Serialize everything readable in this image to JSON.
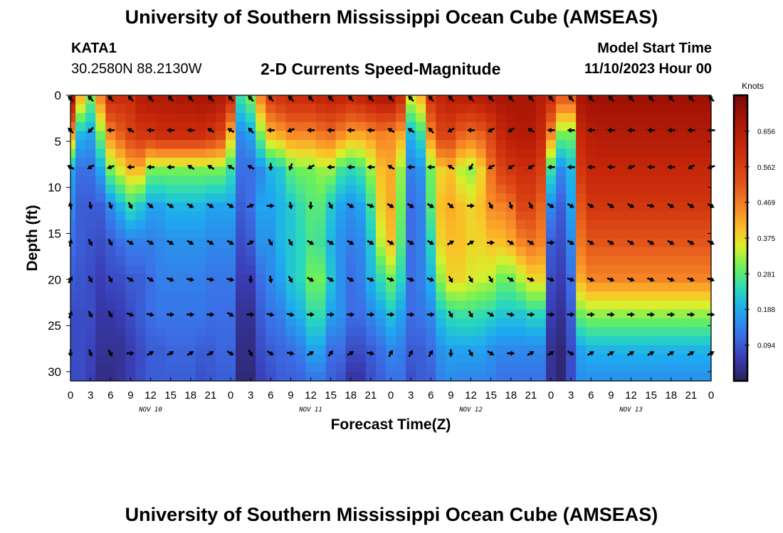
{
  "page": {
    "title_top": "University of Southern Mississippi Ocean Cube (AMSEAS)",
    "title_bottom": "University of Southern Mississippi Ocean Cube (AMSEAS)",
    "station": "KATA1",
    "coords": "30.2580N  88.2130W",
    "subtitle": "2-D Currents Speed-Magnitude",
    "model_start_label": "Model Start Time",
    "model_start_value": "11/10/2023 Hour 00"
  },
  "chart_data": {
    "type": "heatmap",
    "xlabel": "Forecast Time(Z)",
    "ylabel": "Depth (ft)",
    "x_range_hours": [
      0,
      96
    ],
    "y_range_ft": [
      0,
      31
    ],
    "x_ticks": [
      {
        "hour": 0,
        "label": "0"
      },
      {
        "hour": 3,
        "label": "3"
      },
      {
        "hour": 6,
        "label": "6"
      },
      {
        "hour": 9,
        "label": "9"
      },
      {
        "hour": 12,
        "label": "12"
      },
      {
        "hour": 15,
        "label": "15"
      },
      {
        "hour": 18,
        "label": "18"
      },
      {
        "hour": 21,
        "label": "21"
      },
      {
        "hour": 24,
        "label": "0"
      },
      {
        "hour": 27,
        "label": "3"
      },
      {
        "hour": 30,
        "label": "6"
      },
      {
        "hour": 33,
        "label": "9"
      },
      {
        "hour": 36,
        "label": "12"
      },
      {
        "hour": 39,
        "label": "15"
      },
      {
        "hour": 42,
        "label": "18"
      },
      {
        "hour": 45,
        "label": "21"
      },
      {
        "hour": 48,
        "label": "0"
      },
      {
        "hour": 51,
        "label": "3"
      },
      {
        "hour": 54,
        "label": "6"
      },
      {
        "hour": 57,
        "label": "9"
      },
      {
        "hour": 60,
        "label": "12"
      },
      {
        "hour": 63,
        "label": "15"
      },
      {
        "hour": 66,
        "label": "18"
      },
      {
        "hour": 69,
        "label": "21"
      },
      {
        "hour": 72,
        "label": "0"
      },
      {
        "hour": 75,
        "label": "3"
      },
      {
        "hour": 78,
        "label": "6"
      },
      {
        "hour": 81,
        "label": "9"
      },
      {
        "hour": 84,
        "label": "12"
      },
      {
        "hour": 87,
        "label": "15"
      },
      {
        "hour": 90,
        "label": "18"
      },
      {
        "hour": 93,
        "label": "21"
      },
      {
        "hour": 96,
        "label": "0"
      }
    ],
    "day_labels": [
      {
        "hour": 12,
        "label": "NOV 10"
      },
      {
        "hour": 36,
        "label": "NOV 11"
      },
      {
        "hour": 60,
        "label": "NOV 12"
      },
      {
        "hour": 84,
        "label": "NOV 13"
      }
    ],
    "y_ticks": [
      0,
      5,
      10,
      15,
      20,
      25,
      30
    ],
    "arrow_depths_ft": [
      0.2,
      3.8,
      7.8,
      12.0,
      16.0,
      20.0,
      23.8,
      28.0
    ],
    "colorbar": {
      "title": "Knots",
      "min": 0.0,
      "max": 0.75,
      "tick_values": [
        0.094,
        0.188,
        0.281,
        0.375,
        0.469,
        0.562,
        0.656
      ],
      "tick_labels": [
        "0.094",
        "0.188",
        "0.281",
        "0.375",
        "0.469",
        "0.562",
        "0.656"
      ]
    },
    "grid_hours": [
      0,
      1.5,
      3,
      4.5,
      6,
      7.5,
      9,
      10.5,
      12,
      13.5,
      15,
      16.5,
      18,
      19.5,
      21,
      22.5,
      24,
      25.5,
      27,
      28.5,
      30,
      31.5,
      33,
      34.5,
      36,
      37.5,
      39,
      40.5,
      42,
      43.5,
      45,
      46.5,
      48,
      49.5,
      51,
      52.5,
      54,
      55.5,
      57,
      58.5,
      60,
      61.5,
      63,
      64.5,
      66,
      67.5,
      69,
      70.5,
      72,
      73.5,
      75,
      76.5,
      78,
      79.5,
      81,
      82.5,
      84,
      85.5,
      87,
      88.5,
      90,
      91.5,
      93,
      94.5,
      96
    ],
    "depth_profiles_knots": [
      [
        0.68,
        0.42,
        0.18,
        0.15,
        0.12,
        0.1,
        0.08,
        0.08,
        0.08
      ],
      [
        0.4,
        0.2,
        0.12,
        0.1,
        0.1,
        0.09,
        0.08,
        0.08,
        0.08
      ],
      [
        0.3,
        0.18,
        0.12,
        0.1,
        0.09,
        0.08,
        0.08,
        0.07,
        0.06
      ],
      [
        0.45,
        0.3,
        0.18,
        0.1,
        0.08,
        0.06,
        0.05,
        0.04,
        0.03
      ],
      [
        0.6,
        0.45,
        0.3,
        0.15,
        0.1,
        0.08,
        0.05,
        0.04,
        0.03
      ],
      [
        0.6,
        0.5,
        0.35,
        0.2,
        0.12,
        0.08,
        0.06,
        0.04,
        0.04
      ],
      [
        0.6,
        0.55,
        0.4,
        0.25,
        0.14,
        0.1,
        0.08,
        0.06,
        0.06
      ],
      [
        0.65,
        0.58,
        0.4,
        0.22,
        0.14,
        0.1,
        0.1,
        0.08,
        0.08
      ],
      [
        0.66,
        0.58,
        0.3,
        0.18,
        0.14,
        0.12,
        0.12,
        0.1,
        0.1
      ],
      [
        0.66,
        0.6,
        0.3,
        0.18,
        0.15,
        0.14,
        0.13,
        0.1,
        0.1
      ],
      [
        0.66,
        0.6,
        0.3,
        0.2,
        0.16,
        0.14,
        0.13,
        0.11,
        0.1
      ],
      [
        0.67,
        0.6,
        0.3,
        0.2,
        0.16,
        0.14,
        0.13,
        0.11,
        0.1
      ],
      [
        0.67,
        0.6,
        0.3,
        0.2,
        0.16,
        0.14,
        0.13,
        0.11,
        0.1
      ],
      [
        0.68,
        0.6,
        0.3,
        0.2,
        0.16,
        0.14,
        0.13,
        0.1,
        0.08
      ],
      [
        0.68,
        0.58,
        0.3,
        0.18,
        0.15,
        0.13,
        0.12,
        0.1,
        0.09
      ],
      [
        0.66,
        0.55,
        0.3,
        0.18,
        0.15,
        0.13,
        0.12,
        0.11,
        0.1
      ],
      [
        0.6,
        0.4,
        0.25,
        0.18,
        0.15,
        0.13,
        0.12,
        0.11,
        0.1
      ],
      [
        0.25,
        0.15,
        0.12,
        0.1,
        0.08,
        0.06,
        0.04,
        0.03,
        0.02
      ],
      [
        0.3,
        0.18,
        0.12,
        0.12,
        0.1,
        0.06,
        0.04,
        0.03,
        0.02
      ],
      [
        0.45,
        0.3,
        0.15,
        0.18,
        0.16,
        0.12,
        0.1,
        0.08,
        0.06
      ],
      [
        0.55,
        0.4,
        0.2,
        0.18,
        0.16,
        0.15,
        0.13,
        0.1,
        0.08
      ],
      [
        0.58,
        0.42,
        0.22,
        0.2,
        0.2,
        0.18,
        0.14,
        0.11,
        0.1
      ],
      [
        0.6,
        0.45,
        0.28,
        0.22,
        0.22,
        0.22,
        0.18,
        0.12,
        0.1
      ],
      [
        0.6,
        0.45,
        0.3,
        0.25,
        0.24,
        0.24,
        0.2,
        0.14,
        0.1
      ],
      [
        0.6,
        0.45,
        0.3,
        0.28,
        0.27,
        0.3,
        0.25,
        0.18,
        0.12
      ],
      [
        0.62,
        0.47,
        0.32,
        0.28,
        0.26,
        0.3,
        0.25,
        0.18,
        0.12
      ],
      [
        0.63,
        0.48,
        0.32,
        0.22,
        0.2,
        0.22,
        0.18,
        0.12,
        0.1
      ],
      [
        0.62,
        0.45,
        0.26,
        0.18,
        0.16,
        0.16,
        0.16,
        0.12,
        0.08
      ],
      [
        0.6,
        0.42,
        0.24,
        0.16,
        0.14,
        0.12,
        0.12,
        0.08,
        0.04
      ],
      [
        0.62,
        0.42,
        0.26,
        0.18,
        0.15,
        0.14,
        0.12,
        0.08,
        0.04
      ],
      [
        0.64,
        0.44,
        0.32,
        0.26,
        0.22,
        0.2,
        0.15,
        0.1,
        0.08
      ],
      [
        0.66,
        0.46,
        0.4,
        0.38,
        0.34,
        0.25,
        0.18,
        0.12,
        0.1
      ],
      [
        0.66,
        0.45,
        0.42,
        0.42,
        0.4,
        0.3,
        0.22,
        0.15,
        0.12
      ],
      [
        0.6,
        0.42,
        0.32,
        0.3,
        0.28,
        0.24,
        0.18,
        0.14,
        0.12
      ],
      [
        0.35,
        0.2,
        0.14,
        0.12,
        0.12,
        0.12,
        0.12,
        0.1,
        0.08
      ],
      [
        0.4,
        0.25,
        0.16,
        0.14,
        0.14,
        0.14,
        0.13,
        0.1,
        0.1
      ],
      [
        0.58,
        0.45,
        0.3,
        0.28,
        0.24,
        0.2,
        0.15,
        0.12,
        0.1
      ],
      [
        0.62,
        0.55,
        0.38,
        0.4,
        0.38,
        0.32,
        0.22,
        0.16,
        0.14
      ],
      [
        0.64,
        0.55,
        0.4,
        0.42,
        0.4,
        0.38,
        0.25,
        0.18,
        0.15
      ],
      [
        0.64,
        0.5,
        0.34,
        0.4,
        0.4,
        0.38,
        0.26,
        0.18,
        0.14
      ],
      [
        0.64,
        0.48,
        0.32,
        0.38,
        0.38,
        0.36,
        0.26,
        0.18,
        0.14
      ],
      [
        0.65,
        0.5,
        0.38,
        0.4,
        0.38,
        0.35,
        0.25,
        0.18,
        0.14
      ],
      [
        0.66,
        0.55,
        0.48,
        0.45,
        0.4,
        0.34,
        0.24,
        0.16,
        0.14
      ],
      [
        0.68,
        0.62,
        0.55,
        0.46,
        0.4,
        0.3,
        0.22,
        0.15,
        0.12
      ],
      [
        0.68,
        0.65,
        0.58,
        0.48,
        0.42,
        0.3,
        0.22,
        0.15,
        0.12
      ],
      [
        0.68,
        0.66,
        0.6,
        0.55,
        0.46,
        0.34,
        0.22,
        0.15,
        0.12
      ],
      [
        0.68,
        0.66,
        0.6,
        0.55,
        0.48,
        0.38,
        0.24,
        0.15,
        0.12
      ],
      [
        0.65,
        0.62,
        0.56,
        0.5,
        0.46,
        0.38,
        0.24,
        0.15,
        0.12
      ],
      [
        0.6,
        0.45,
        0.25,
        0.15,
        0.1,
        0.08,
        0.06,
        0.04,
        0.04
      ],
      [
        0.5,
        0.3,
        0.15,
        0.1,
        0.08,
        0.06,
        0.04,
        0.02,
        0.02
      ],
      [
        0.5,
        0.3,
        0.2,
        0.18,
        0.15,
        0.12,
        0.1,
        0.08,
        0.08
      ],
      [
        0.68,
        0.62,
        0.58,
        0.52,
        0.48,
        0.42,
        0.3,
        0.18,
        0.15
      ],
      [
        0.7,
        0.65,
        0.62,
        0.58,
        0.52,
        0.46,
        0.32,
        0.2,
        0.15
      ],
      [
        0.7,
        0.66,
        0.62,
        0.58,
        0.52,
        0.46,
        0.32,
        0.2,
        0.15
      ],
      [
        0.7,
        0.66,
        0.62,
        0.58,
        0.52,
        0.46,
        0.32,
        0.2,
        0.15
      ],
      [
        0.7,
        0.66,
        0.62,
        0.58,
        0.52,
        0.46,
        0.32,
        0.2,
        0.15
      ],
      [
        0.7,
        0.66,
        0.62,
        0.58,
        0.52,
        0.46,
        0.32,
        0.2,
        0.15
      ],
      [
        0.7,
        0.66,
        0.62,
        0.58,
        0.52,
        0.46,
        0.32,
        0.2,
        0.15
      ],
      [
        0.7,
        0.66,
        0.62,
        0.58,
        0.52,
        0.46,
        0.32,
        0.2,
        0.15
      ],
      [
        0.7,
        0.66,
        0.62,
        0.58,
        0.52,
        0.46,
        0.32,
        0.2,
        0.15
      ],
      [
        0.7,
        0.66,
        0.62,
        0.58,
        0.52,
        0.46,
        0.32,
        0.2,
        0.15
      ],
      [
        0.7,
        0.66,
        0.62,
        0.58,
        0.52,
        0.46,
        0.32,
        0.2,
        0.15
      ],
      [
        0.7,
        0.66,
        0.62,
        0.58,
        0.52,
        0.46,
        0.32,
        0.2,
        0.15
      ],
      [
        0.7,
        0.66,
        0.62,
        0.58,
        0.52,
        0.46,
        0.32,
        0.2,
        0.15
      ],
      [
        0.7,
        0.66,
        0.62,
        0.58,
        0.52,
        0.46,
        0.32,
        0.2,
        0.15
      ]
    ],
    "vector_rows_deg": [
      [
        315,
        315,
        315,
        315,
        315,
        315,
        315,
        315,
        315,
        315,
        315,
        315,
        315,
        315,
        315,
        315,
        315,
        315,
        315,
        315,
        315,
        315,
        315,
        315,
        315,
        315,
        315,
        315,
        315,
        315,
        315,
        315,
        315
      ],
      [
        315,
        225,
        270,
        300,
        270,
        270,
        270,
        300,
        300,
        315,
        270,
        250,
        270,
        270,
        270,
        270,
        300,
        300,
        315,
        240,
        270,
        240,
        240,
        300,
        270,
        270,
        270,
        270,
        270,
        270,
        270,
        270,
        270
      ],
      [
        300,
        240,
        250,
        270,
        270,
        270,
        300,
        300,
        300,
        300,
        180,
        200,
        240,
        270,
        270,
        270,
        300,
        270,
        270,
        300,
        210,
        240,
        240,
        240,
        270,
        270,
        270,
        270,
        250,
        270,
        270,
        240,
        250
      ],
      [
        350,
        170,
        160,
        150,
        130,
        120,
        120,
        120,
        120,
        70,
        90,
        170,
        180,
        150,
        120,
        110,
        120,
        120,
        120,
        130,
        90,
        150,
        160,
        150,
        120,
        120,
        120,
        120,
        120,
        100,
        120,
        120,
        120
      ],
      [
        10,
        150,
        150,
        120,
        120,
        120,
        120,
        120,
        120,
        60,
        150,
        150,
        120,
        120,
        120,
        120,
        120,
        120,
        120,
        60,
        60,
        90,
        120,
        120,
        90,
        120,
        120,
        120,
        120,
        120,
        120,
        120,
        120
      ],
      [
        30,
        150,
        150,
        120,
        120,
        110,
        100,
        100,
        100,
        180,
        170,
        150,
        120,
        120,
        120,
        110,
        110,
        110,
        110,
        150,
        150,
        150,
        120,
        110,
        110,
        110,
        110,
        110,
        110,
        110,
        110,
        110,
        110
      ],
      [
        20,
        150,
        150,
        110,
        100,
        90,
        90,
        90,
        120,
        90,
        100,
        100,
        90,
        90,
        90,
        90,
        90,
        90,
        90,
        150,
        150,
        120,
        100,
        90,
        90,
        90,
        90,
        90,
        90,
        90,
        90,
        90,
        90
      ],
      [
        180,
        160,
        150,
        90,
        60,
        60,
        60,
        60,
        120,
        150,
        120,
        100,
        60,
        40,
        60,
        100,
        30,
        30,
        30,
        180,
        150,
        120,
        90,
        60,
        60,
        120,
        60,
        60,
        60,
        60,
        60,
        60,
        60
      ]
    ]
  }
}
